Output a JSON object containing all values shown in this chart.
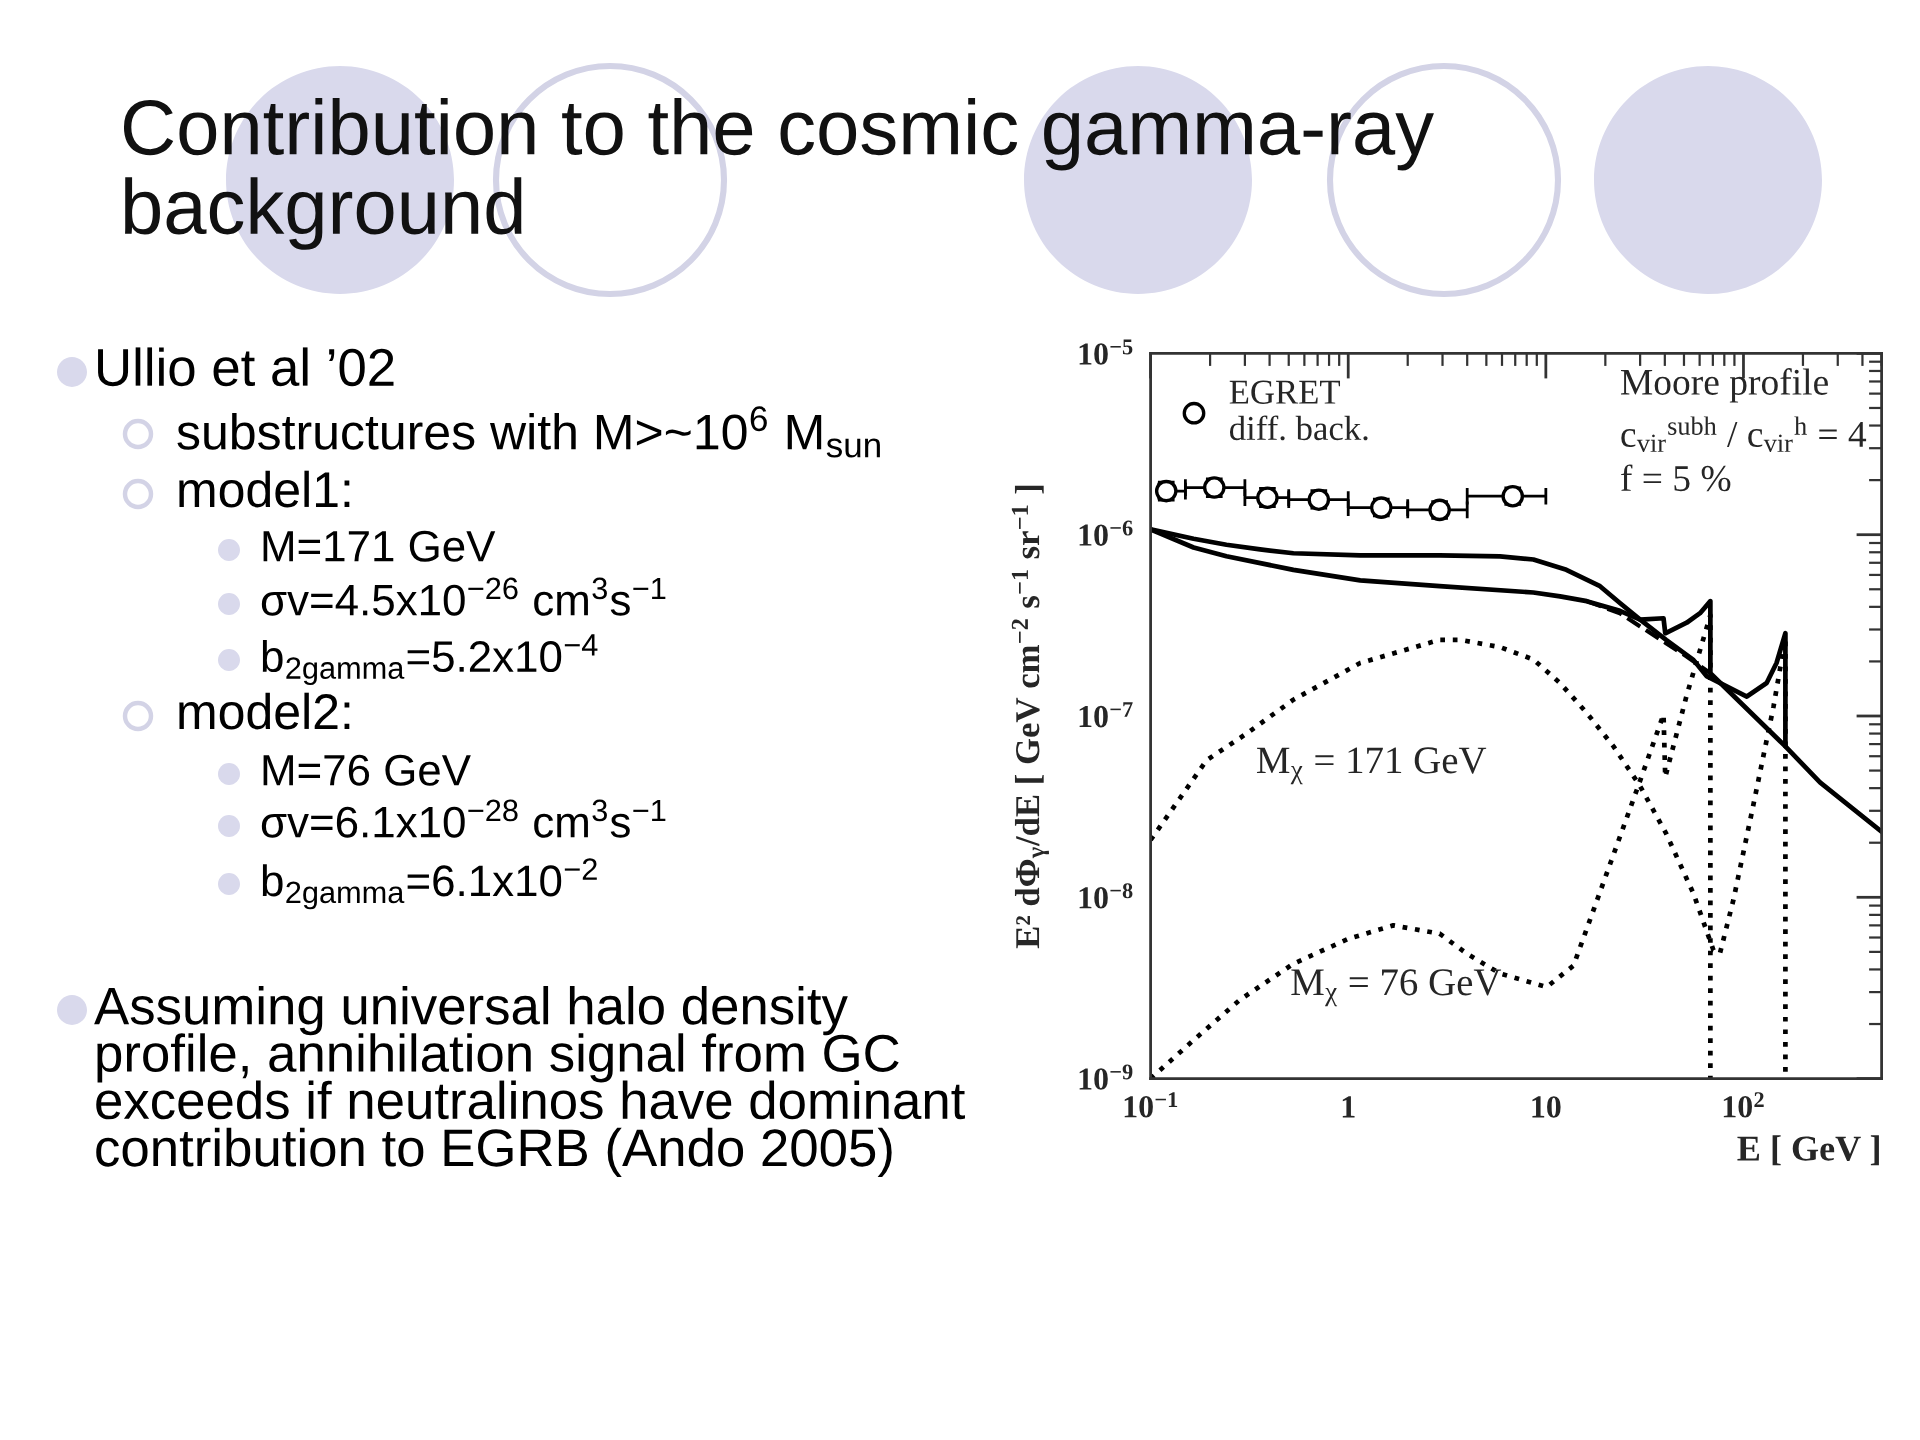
{
  "chart_data": {
    "type": "line",
    "title": "Contribution to the cosmic gamma-ray\nbackground",
    "xlabel": "E [ GeV ]",
    "ylabel": "E² dΦ$_{γ}$/dE [ GeV cm$^{−2}$ s$^{−1}$ sr$^{−1}$ ]",
    "log": "xy",
    "xlim": [
      0.1,
      500
    ],
    "ylim": [
      1e-09,
      1e-05
    ],
    "xticks": [
      {
        "value": 0.1,
        "label": "10$^{−1}$"
      },
      1,
      10,
      {
        "value": 100,
        "label": "10$^{2}$"
      }
    ],
    "yticks": [
      {
        "value": 1e-09,
        "label": "10$^{−9}$"
      },
      {
        "value": 1e-08,
        "label": "10$^{−8}$"
      },
      {
        "value": 1e-07,
        "label": "10$^{−7}$"
      },
      {
        "value": 1e-06,
        "label": "10$^{−6}$"
      },
      {
        "value": 1e-05,
        "label": "10$^{−5}$"
      }
    ],
    "legend": "top left",
    "series": [
      {
        "name": "EGRET\ndiff. back.",
        "type": "scatter",
        "marker": "circle",
        "color": "#000000",
        "x": [
          0.12,
          0.21,
          0.39,
          0.71,
          1.47,
          2.9,
          6.8
        ],
        "values": [
          1.74e-06,
          1.82e-06,
          1.6e-06,
          1.56e-06,
          1.41e-06,
          1.37e-06,
          1.63e-06
        ],
        "errors": [
          [
            1.55e-06,
            1.95e-06
          ],
          [
            1.62e-06,
            2.03e-06
          ],
          [
            1.43e-06,
            1.8e-06
          ],
          [
            1.4e-06,
            1.75e-06
          ],
          [
            1.27e-06,
            1.57e-06
          ],
          [
            1.23e-06,
            1.52e-06
          ],
          [
            1.47e-06,
            1.81e-06
          ]
        ],
        "xerrors": [
          [
            0.11,
            0.15
          ],
          [
            0.15,
            0.3
          ],
          [
            0.3,
            0.5
          ],
          [
            0.5,
            1
          ],
          [
            1,
            2
          ],
          [
            2,
            4
          ],
          [
            4,
            10
          ]
        ]
      },
      {
        "type": "line",
        "line_style": "solid",
        "color": "#000000",
        "x": [
          0.1,
          0.165,
          0.242,
          0.358,
          0.528,
          1.15,
          2.9,
          5.86,
          8.65,
          12.7,
          18.8,
          23.7,
          30,
          40.6,
          55.8,
          65,
          104,
          131,
          147,
          163,
          163,
          244,
          500
        ],
        "values": [
          1.07e-06,
          9.5e-07,
          8.8e-07,
          8.3e-07,
          7.9e-07,
          7.7e-07,
          7.7e-07,
          7.6e-07,
          7.3e-07,
          6.4e-07,
          5.2e-07,
          4.2e-07,
          3.4e-07,
          2.63e-07,
          2.04e-07,
          1.66e-07,
          1.28e-07,
          1.52e-07,
          1.96e-07,
          2.86e-07,
          6.8e-08,
          4.3e-08,
          2.3e-08
        ]
      },
      {
        "type": "line",
        "line_style": "solid",
        "color": "#000000",
        "x": [
          0.1,
          0.165,
          0.242,
          0.528,
          1.15,
          2.9,
          8.65,
          11.8,
          16.1,
          23.7,
          30,
          39.4,
          40.2,
          51.6,
          60.3,
          68,
          68,
          163
        ],
        "values": [
          1.07e-06,
          8.5e-07,
          7.6e-07,
          6.4e-07,
          5.6e-07,
          5.2e-07,
          4.8e-07,
          4.57e-07,
          4.3e-07,
          3.8e-07,
          3.4e-07,
          3.46e-07,
          2.86e-07,
          3.27e-07,
          3.69e-07,
          4.3e-07,
          1.72e-07,
          6.8e-08
        ]
      },
      {
        "type": "line",
        "line_style": "dashed",
        "color": "#000000",
        "x": [
          16.1,
          23.7,
          30,
          40.6,
          51.6,
          68
        ],
        "values": [
          4.3e-07,
          3.69e-07,
          3.12e-07,
          2.52e-07,
          2.13e-07,
          1.72e-07
        ]
      },
      {
        "type": "line",
        "line_style": "dotted",
        "color": "#000000",
        "x": [
          0.1,
          0.192,
          0.306,
          0.528,
          1.15,
          2.9,
          3.68,
          5.86,
          8.65,
          11.8,
          16.1,
          22,
          30,
          40.6,
          55.8,
          70.5,
          76,
          89,
          112,
          142,
          163,
          163
        ],
        "values": [
          2.07e-08,
          5.7e-08,
          8e-08,
          1.23e-07,
          1.96e-07,
          2.63e-07,
          2.63e-07,
          2.4e-07,
          2.05e-07,
          1.52e-07,
          1.04e-07,
          6.8e-08,
          4.1e-08,
          2.25e-08,
          1.05e-08,
          5.1e-09,
          4.9e-09,
          9.7e-09,
          3.2e-08,
          1.13e-07,
          2.7e-07,
          1e-09
        ]
      },
      {
        "type": "line",
        "line_style": "dotted",
        "color": "#000000",
        "x": [
          0.1,
          0.165,
          0.283,
          0.528,
          1,
          1.69,
          2.9,
          3.97,
          5.86,
          10.1,
          13.8,
          18.8,
          30,
          39.4,
          40.2,
          51.6,
          68,
          68
        ],
        "values": [
          1e-09,
          1.63e-09,
          2.72e-09,
          4.3e-09,
          5.9e-09,
          7e-09,
          6.3e-09,
          4.9e-09,
          3.8e-09,
          3.2e-09,
          4.2e-09,
          1.07e-08,
          4.4e-08,
          1.02e-07,
          4.6e-08,
          1.3e-07,
          3.6e-07,
          1e-09
        ]
      }
    ],
    "annotations": [
      "Ullio et al ’02",
      "substructures with M>~10$^{6}$ M$_{sun}$",
      "model1:",
      "M=171 GeV",
      "σv=4.5x10$^{−26}$ cm$^{3}$s$^{−1}$",
      "b$_{2gamma}$=5.2x10$^{−4}$",
      "model2:",
      "M=76 GeV",
      "σv=6.1x10$^{−28}$ cm$^{3}$s$^{−1}$",
      "b$_{2gamma}$=6.1x10$^{−2}$",
      "Assuming universal halo density\nprofile, annihilation signal from GC\nexceeds if neutralinos have dominant\ncontribution to EGRB (Ando 2005)",
      "Moore profile",
      "c$_{vir}$$^{subh}$ / c$_{vir}$$^{h}$ = 4",
      "f = 5 %",
      "M$_{χ}$ = 171 GeV",
      "M$_{χ}$ = 76 GeV"
    ]
  }
}
